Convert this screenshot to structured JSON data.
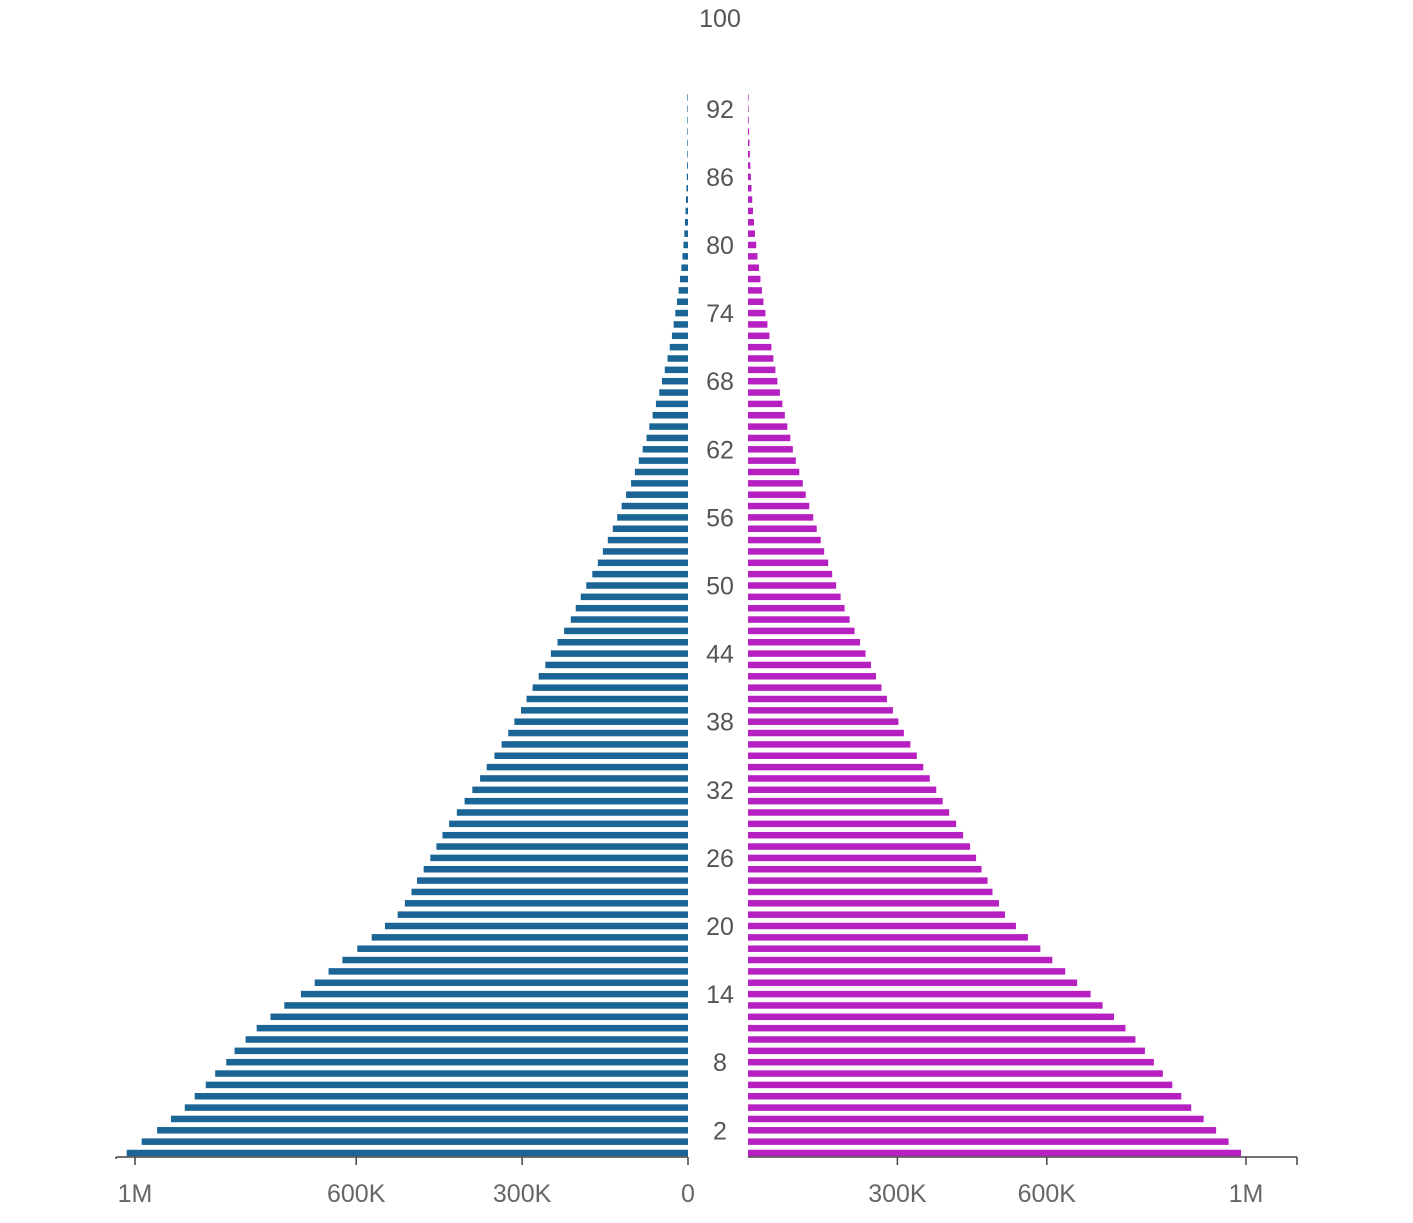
{
  "colors": {
    "male": "#1a6496",
    "female": "#b620c0",
    "axis": "#444444",
    "text": "#666666"
  },
  "chart_data": {
    "type": "bar",
    "orientation": "horizontal-pyramid",
    "y_categories": [
      0,
      1,
      2,
      3,
      4,
      5,
      6,
      7,
      8,
      9,
      10,
      11,
      12,
      13,
      14,
      15,
      16,
      17,
      18,
      19,
      20,
      21,
      22,
      23,
      24,
      25,
      26,
      27,
      28,
      29,
      30,
      31,
      32,
      33,
      34,
      35,
      36,
      37,
      38,
      39,
      40,
      41,
      42,
      43,
      44,
      45,
      46,
      47,
      48,
      49,
      50,
      51,
      52,
      53,
      54,
      55,
      56,
      57,
      58,
      59,
      60,
      61,
      62,
      63,
      64,
      65,
      66,
      67,
      68,
      69,
      70,
      71,
      72,
      73,
      74,
      75,
      76,
      77,
      78,
      79,
      80,
      81,
      82,
      83,
      84,
      85,
      86,
      87,
      88,
      89,
      90,
      91,
      92,
      93
    ],
    "age_labels": [
      "2",
      "8",
      "14",
      "20",
      "26",
      "32",
      "38",
      "44",
      "50",
      "56",
      "62",
      "68",
      "74",
      "80",
      "86",
      "92",
      "100"
    ],
    "age_label_values": [
      2,
      8,
      14,
      20,
      26,
      32,
      38,
      44,
      50,
      56,
      62,
      68,
      74,
      80,
      86,
      92,
      100
    ],
    "left_axis": {
      "ticks": [
        "1M",
        "600K",
        "300K",
        "0"
      ],
      "tick_values": [
        1000000,
        600000,
        300000,
        0
      ],
      "max": 1020000
    },
    "right_axis": {
      "ticks": [
        "300K",
        "600K",
        "1M"
      ],
      "tick_values": [
        300000,
        600000,
        1000000
      ],
      "max": 1020000
    },
    "series": [
      {
        "side": "left",
        "values": [
          1015000,
          988000,
          960000,
          935000,
          910000,
          892000,
          872000,
          855000,
          835000,
          820000,
          800000,
          780000,
          755000,
          730000,
          700000,
          675000,
          650000,
          625000,
          598000,
          572000,
          548000,
          525000,
          512000,
          500000,
          490000,
          478000,
          466000,
          455000,
          444000,
          432000,
          418000,
          404000,
          390000,
          376000,
          364000,
          350000,
          337000,
          325000,
          314000,
          302000,
          292000,
          281000,
          270000,
          258000,
          248000,
          236000,
          224000,
          212000,
          203000,
          194000,
          184000,
          173000,
          163000,
          154000,
          145000,
          136000,
          128000,
          120000,
          112000,
          103000,
          96000,
          89000,
          82000,
          75000,
          70000,
          64000,
          58000,
          52000,
          47000,
          42000,
          37000,
          33000,
          29000,
          26000,
          23000,
          20000,
          17000,
          14500,
          12000,
          10000,
          8200,
          6700,
          5500,
          4500,
          3600,
          2800,
          2100,
          1600,
          1200,
          900,
          650,
          450,
          300,
          180
        ]
      },
      {
        "side": "right",
        "values": [
          990000,
          965000,
          940000,
          915000,
          890000,
          870000,
          852000,
          833000,
          815000,
          797000,
          778000,
          758000,
          735000,
          712000,
          688000,
          661000,
          637000,
          611000,
          587000,
          562000,
          538000,
          516000,
          504000,
          491000,
          481000,
          469000,
          458000,
          446000,
          432000,
          418000,
          404000,
          391000,
          378000,
          365000,
          352000,
          339000,
          326000,
          313000,
          302000,
          291000,
          279000,
          268000,
          257000,
          247000,
          236000,
          225000,
          214000,
          204000,
          194000,
          186000,
          177000,
          169000,
          161000,
          153000,
          146000,
          138000,
          131000,
          123000,
          116000,
          110000,
          103000,
          96000,
          90000,
          85000,
          79000,
          74000,
          69000,
          64000,
          59000,
          55000,
          51000,
          47000,
          43000,
          39000,
          35000,
          31000,
          28000,
          25000,
          22000,
          19000,
          16500,
          14000,
          12000,
          10000,
          8500,
          7000,
          5800,
          4700,
          3700,
          2900,
          2200,
          1600,
          1100,
          700
        ]
      }
    ]
  }
}
